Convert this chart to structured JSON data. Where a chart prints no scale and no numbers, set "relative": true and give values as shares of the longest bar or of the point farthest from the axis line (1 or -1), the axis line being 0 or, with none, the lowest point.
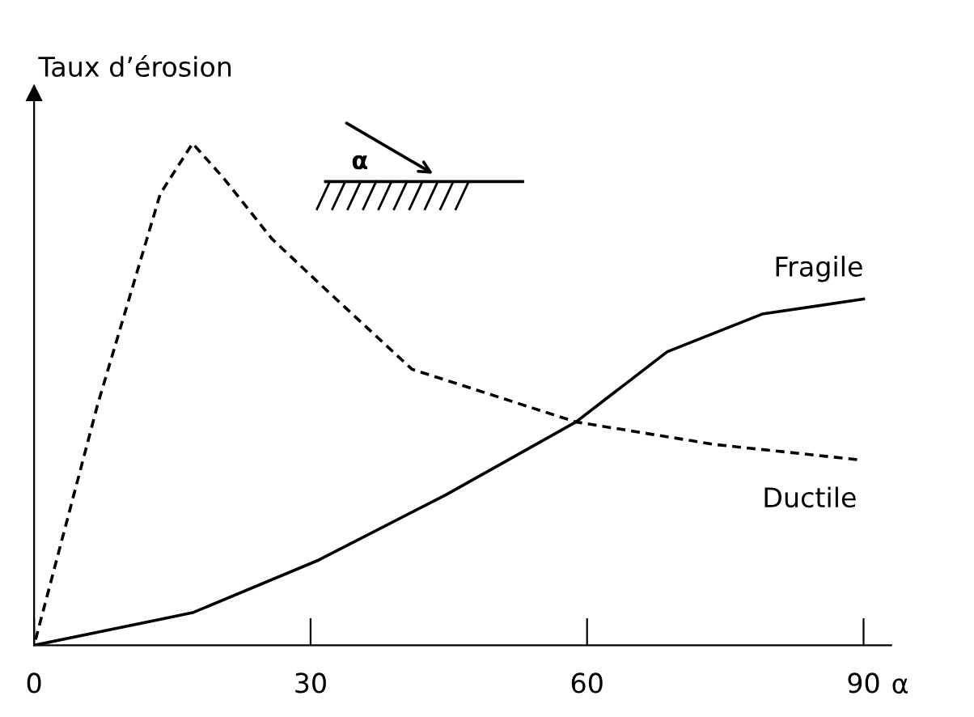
{
  "chart_data": {
    "type": "line",
    "ylabel": "Taux d’érosion",
    "xlabel": "α",
    "relative": true,
    "xlim": [
      0,
      93
    ],
    "xticks": [
      0,
      30,
      60,
      90
    ],
    "tick_labels": "x",
    "grid": false,
    "legend": false,
    "marker": "none",
    "annotations": [
      "α"
    ],
    "series": [
      {
        "name": "Fragile",
        "color": "#000000",
        "line_style": "solid",
        "x": [
          0,
          17.2,
          30.9,
          44.7,
          58.8,
          68.7,
          79,
          90
        ],
        "values": [
          0,
          0.065,
          0.17,
          0.3,
          0.445,
          0.585,
          0.66,
          0.69
        ]
      },
      {
        "name": "Ductile",
        "color": "#000000",
        "line_style": "dashed",
        "x": [
          0,
          6.9,
          13.7,
          17.2,
          20.6,
          25.8,
          31,
          41,
          58.8,
          73.9,
          89.3
        ],
        "values": [
          0,
          0.48,
          0.9,
          1,
          0.93,
          0.81,
          0.72,
          0.55,
          0.445,
          0.4,
          0.37
        ]
      }
    ]
  }
}
